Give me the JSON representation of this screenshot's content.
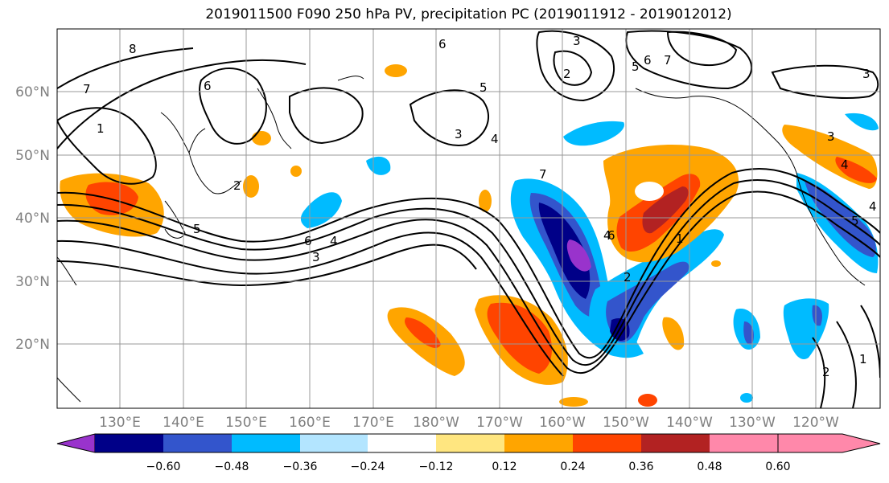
{
  "title": "2019011500 F090 250 hPa PV, precipitation PC (2019011912 - 2019012012)",
  "lat_labels": [
    "60°N",
    "50°N",
    "40°N",
    "30°N",
    "20°N"
  ],
  "lon_labels": [
    "130°E",
    "140°E",
    "150°E",
    "160°E",
    "170°E",
    "180°W",
    "170°W",
    "160°W",
    "150°W",
    "140°W",
    "130°W",
    "120°W"
  ],
  "colorbar": {
    "tick_labels": [
      "−0.60",
      "−0.48",
      "−0.36",
      "−0.24",
      "−0.12",
      "0.12",
      "0.24",
      "0.36",
      "0.48",
      "0.60"
    ],
    "colors": [
      "#9933cc",
      "#000088",
      "#3355cc",
      "#00bbff",
      "#b3e5ff",
      "#ffffff",
      "#ffe680",
      "#ffa500",
      "#ff4400",
      "#b22222",
      "#ff88aa"
    ]
  },
  "contour_labels": [
    "8",
    "7",
    "6",
    "5",
    "4",
    "3",
    "2",
    "1",
    "6",
    "5",
    "4",
    "3",
    "6",
    "7",
    "3",
    "2",
    "5",
    "6",
    "7",
    "4",
    "2",
    "1",
    "3",
    "4",
    "2",
    "1",
    "3",
    "4",
    "5",
    "6"
  ]
}
